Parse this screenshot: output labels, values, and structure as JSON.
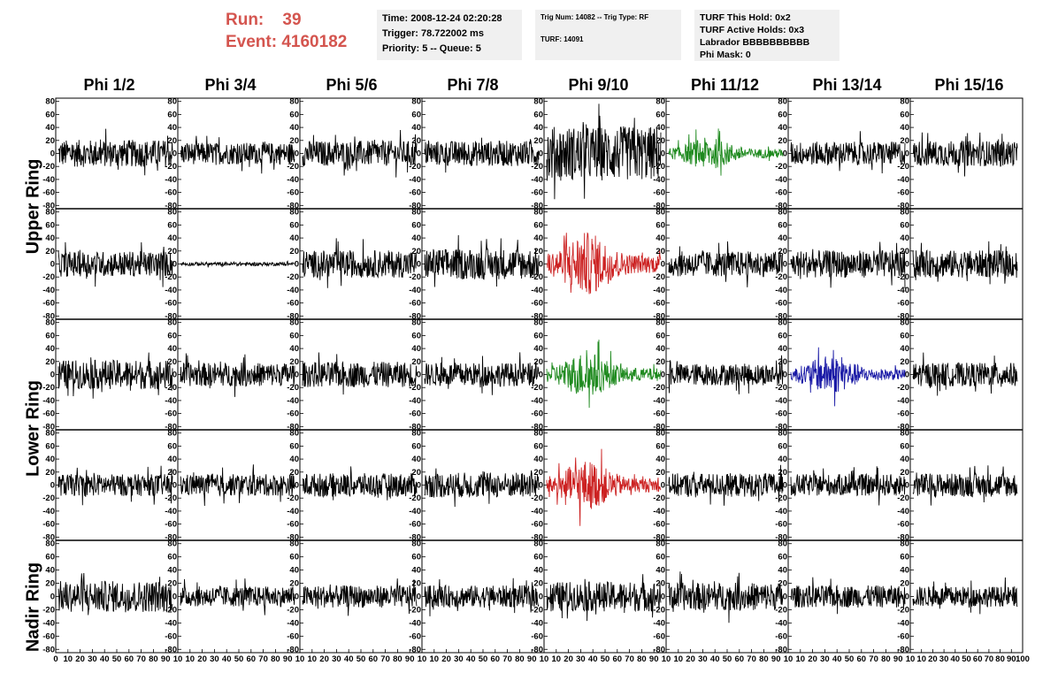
{
  "header": {
    "run_label": "Run:",
    "run_value": "39",
    "event_label": "Event:",
    "event_value": "4160182",
    "time_line": "Time: 2008-12-24 02:20:28",
    "trigger_line": "Trigger: 78.722002 ms",
    "priority_line": "Priority: 5 -- Queue: 5",
    "trig_line": "Trig Num: 14082 -- Trig Type: RF",
    "turf_line": "TURF: 14091",
    "turf_hold_line": "TURF This Hold: 0x2",
    "turf_active_line": "TURF Active Holds: 0x3",
    "labrador_line": "Labrador BBBBBBBBBB",
    "phi_mask_line": "Phi Mask: 0"
  },
  "columns": [
    "Phi 1/2",
    "Phi 3/4",
    "Phi 5/6",
    "Phi 7/8",
    "Phi 9/10",
    "Phi 11/12",
    "Phi 13/14",
    "Phi 15/16"
  ],
  "row_labels": [
    "Upper Ring",
    "Lower Ring",
    "Nadir Ring"
  ],
  "colors": {
    "trace_default": "#000000",
    "trace_green": "#1f8a1f",
    "trace_red": "#cc2222",
    "trace_blue": "#1a1aa6",
    "header_text": "#d4554f",
    "box_bg": "#f0f0f0"
  },
  "chart_data": {
    "type": "line",
    "grid": false,
    "rows": 5,
    "cols": 8,
    "xlim": [
      0,
      100
    ],
    "ylim": [
      -85,
      85
    ],
    "x_ticks": [
      0,
      10,
      20,
      30,
      40,
      50,
      60,
      70,
      80,
      90,
      100
    ],
    "x_tick_labels_first": "0 10 20 30 40 50 60 70 80 90 10",
    "x_tick_labels_mid": "10 20 30 40 50 60 70 80 90 10",
    "x_tick_labels_last": "10 20 30 40 50 60 70 80 90 100",
    "y_ticks": [
      80,
      60,
      40,
      20,
      0,
      -20,
      -40,
      -60,
      -80
    ],
    "panel_styles": [
      [
        "default",
        "default",
        "default",
        "default",
        "default",
        "green",
        "default",
        "default"
      ],
      [
        "default",
        "flat",
        "default",
        "default",
        "red",
        "default",
        "default",
        "default"
      ],
      [
        "default",
        "default",
        "default",
        "default",
        "green",
        "default",
        "blue",
        "default"
      ],
      [
        "default",
        "default",
        "default",
        "default",
        "red",
        "default",
        "default",
        "default"
      ],
      [
        "default",
        "default",
        "default",
        "default",
        "default",
        "default",
        "default",
        "default"
      ]
    ],
    "panel_amplitudes": [
      [
        15,
        12,
        14,
        14,
        30,
        14,
        13,
        14
      ],
      [
        14,
        2,
        15,
        17,
        28,
        14,
        15,
        15
      ],
      [
        16,
        13,
        14,
        13,
        20,
        12,
        17,
        13
      ],
      [
        12,
        12,
        13,
        14,
        22,
        13,
        12,
        13
      ],
      [
        17,
        11,
        12,
        12,
        16,
        15,
        12,
        11
      ]
    ]
  }
}
